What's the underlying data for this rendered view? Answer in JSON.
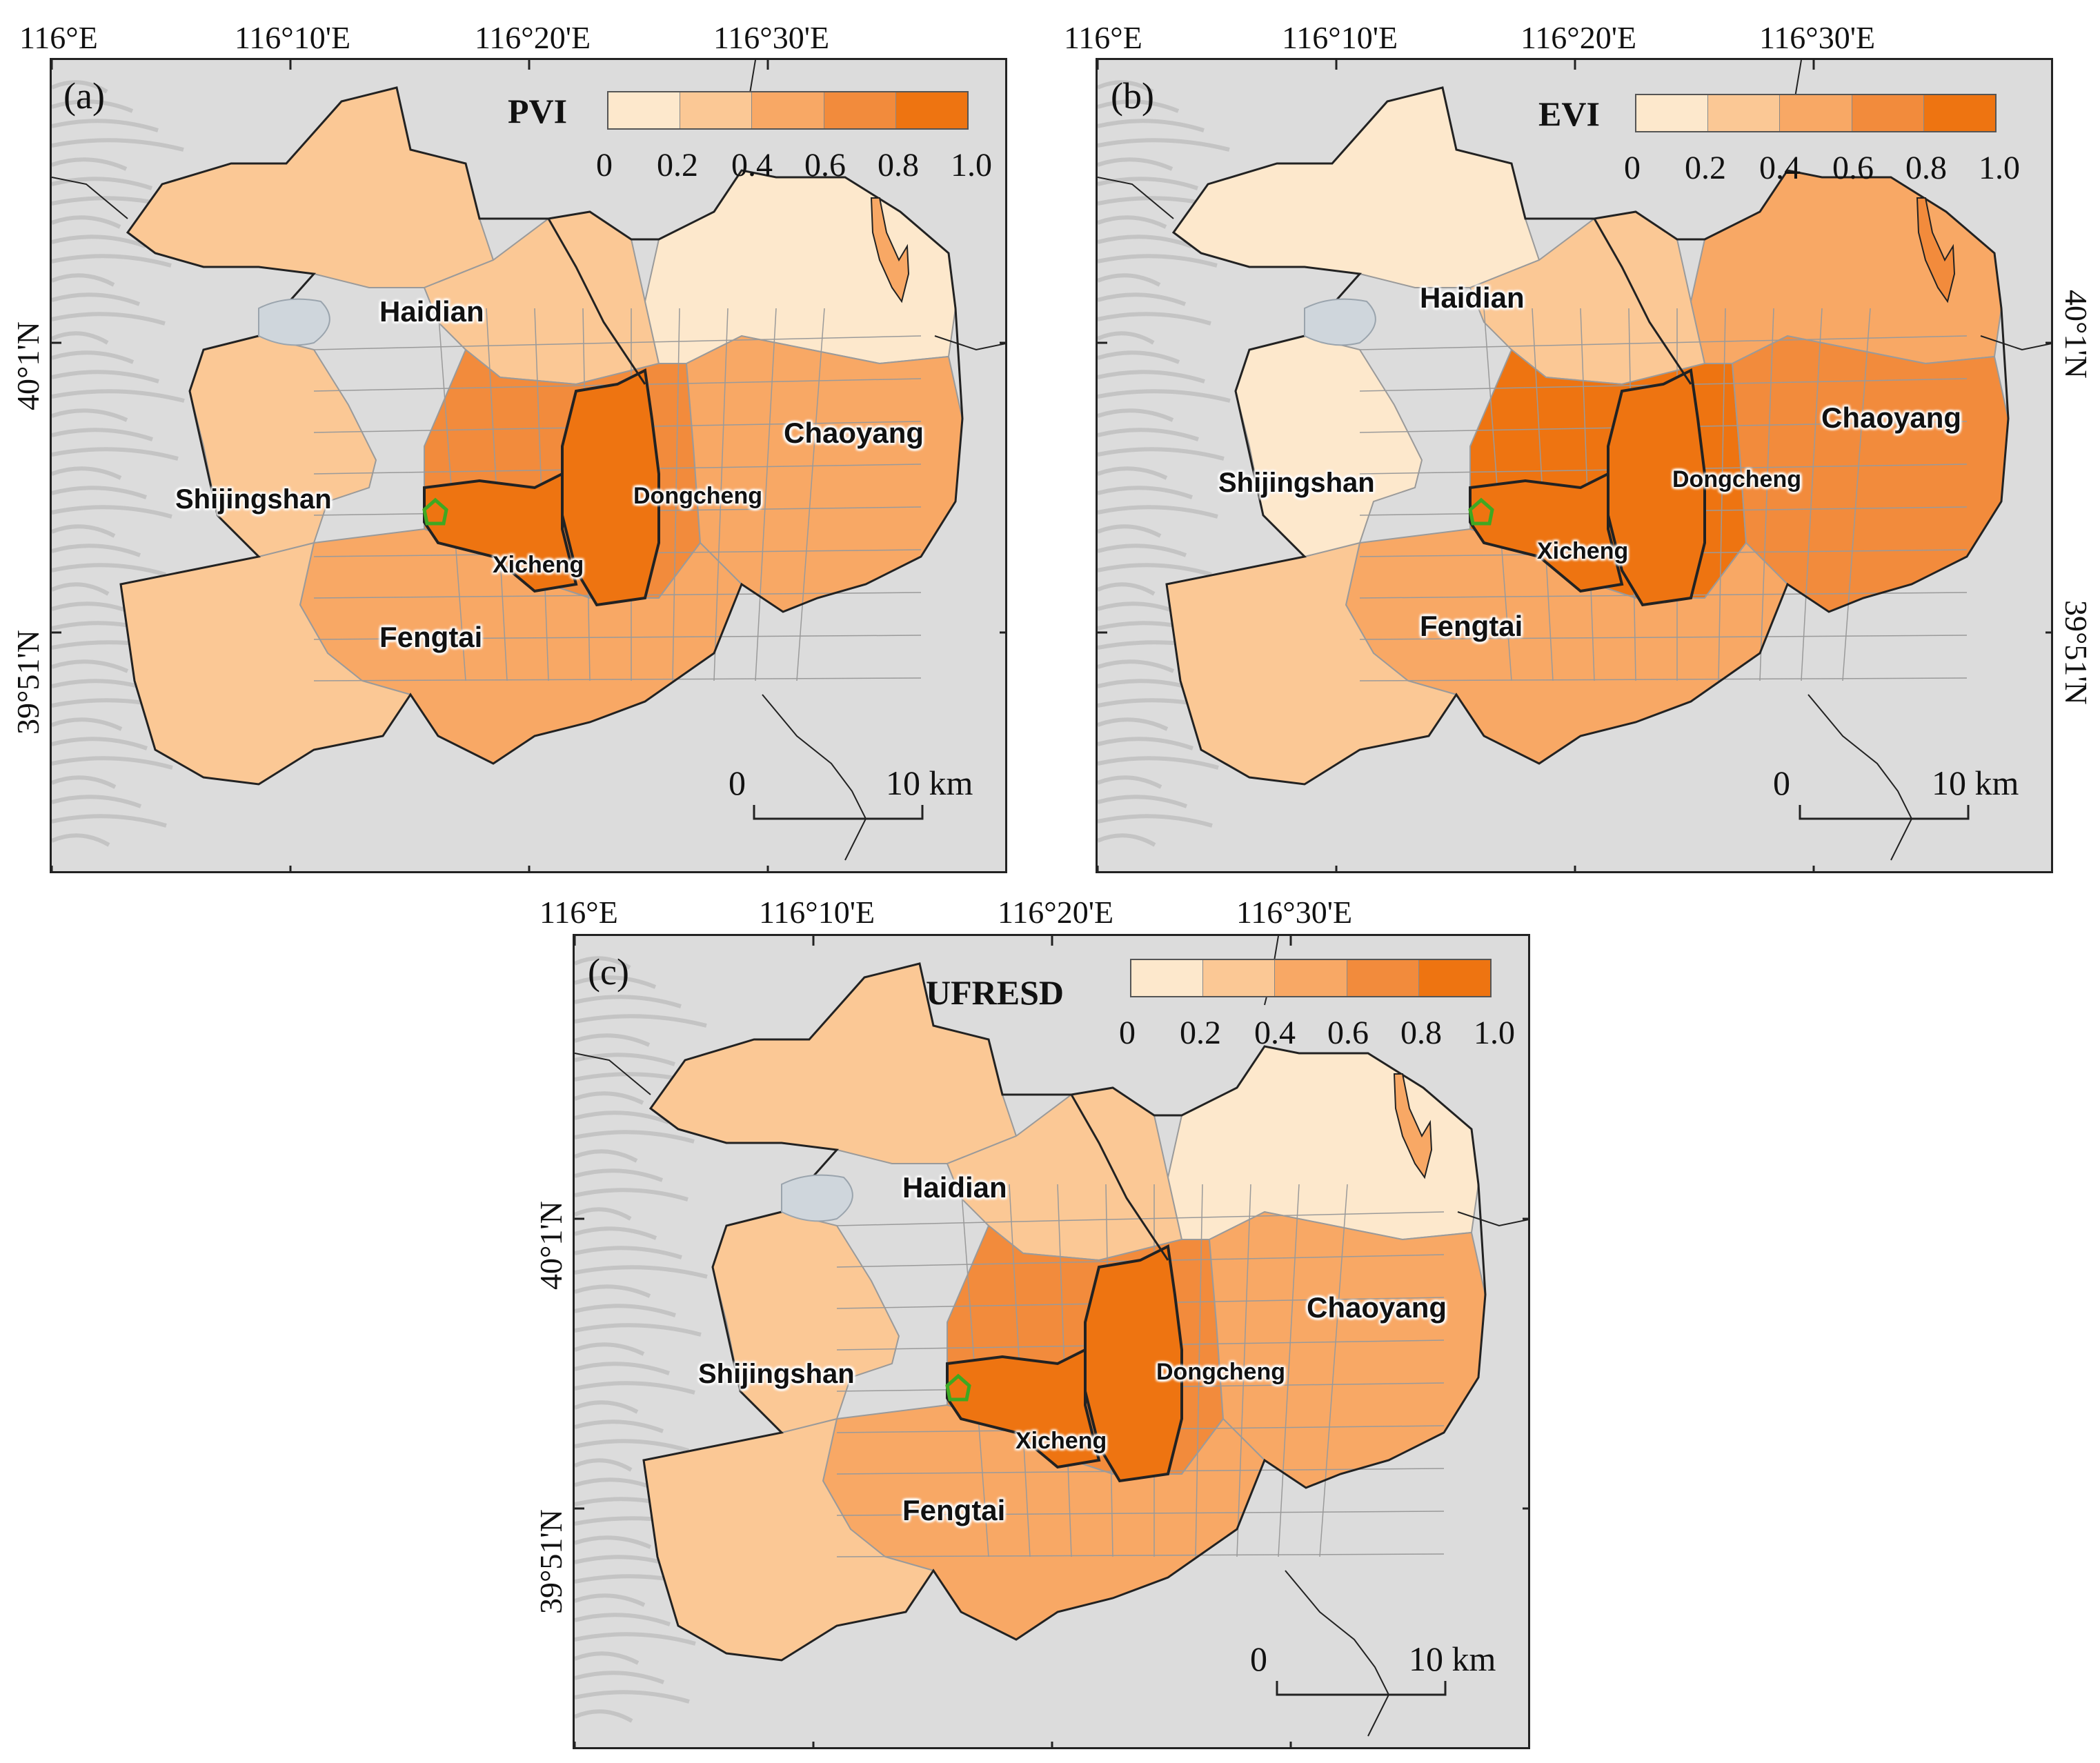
{
  "panels": [
    {
      "id": "a",
      "label": "(a)",
      "index_name": "PVI",
      "lon_ticks": [
        "116°E",
        "116°10'E",
        "116°20'E",
        "116°30'E"
      ],
      "lat_ticks": [
        "40°1'N",
        "39°51'N"
      ],
      "legend_ticks": [
        "0",
        "0.2",
        "0.4",
        "0.6",
        "0.8",
        "1.0"
      ],
      "scale_labels": [
        "0",
        "10 km"
      ],
      "districts": [
        "Haidian",
        "Chaoyang",
        "Shijingshan",
        "Dongcheng",
        "Xicheng",
        "Fengtai"
      ],
      "district_levels": {
        "west": 0.3,
        "north": 0.35,
        "northeast": 0.15,
        "center": 0.7,
        "east": 0.5,
        "south": 0.45,
        "southwest": 0.3
      }
    },
    {
      "id": "b",
      "label": "(b)",
      "index_name": "EVI",
      "lon_ticks": [
        "116°E",
        "116°10'E",
        "116°20'E",
        "116°30'E"
      ],
      "lat_ticks": [
        "40°1'N",
        "39°51'N"
      ],
      "legend_ticks": [
        "0",
        "0.2",
        "0.4",
        "0.6",
        "0.8",
        "1.0"
      ],
      "scale_labels": [
        "0",
        "10 km"
      ],
      "districts": [
        "Haidian",
        "Chaoyang",
        "Shijingshan",
        "Dongcheng",
        "Xicheng",
        "Fengtai"
      ],
      "district_levels": {
        "west": 0.15,
        "north": 0.3,
        "northeast": 0.45,
        "center": 0.85,
        "east": 0.75,
        "south": 0.6,
        "southwest": 0.3
      }
    },
    {
      "id": "c",
      "label": "(c)",
      "index_name": "UFRESD",
      "lon_ticks": [
        "116°E",
        "116°10'E",
        "116°20'E",
        "116°30'E"
      ],
      "lat_ticks": [
        "40°1'N",
        "39°51'N"
      ],
      "legend_ticks": [
        "0",
        "0.2",
        "0.4",
        "0.6",
        "0.8",
        "1.0"
      ],
      "scale_labels": [
        "0",
        "10 km"
      ],
      "districts": [
        "Haidian",
        "Chaoyang",
        "Shijingshan",
        "Dongcheng",
        "Xicheng",
        "Fengtai"
      ],
      "district_levels": {
        "west": 0.3,
        "north": 0.35,
        "northeast": 0.15,
        "center": 0.7,
        "east": 0.5,
        "south": 0.45,
        "southwest": 0.3
      }
    }
  ],
  "legend_classes": [
    {
      "range": "0-0.2",
      "color": "#fde8cc"
    },
    {
      "range": "0.2-0.4",
      "color": "#fbc895"
    },
    {
      "range": "0.4-0.6",
      "color": "#f8a865"
    },
    {
      "range": "0.6-0.8",
      "color": "#f28b3c"
    },
    {
      "range": "0.8-1.0",
      "color": "#ee7411"
    }
  ],
  "colors": {
    "background": "#dcdcdc",
    "boundary_thin": "#9a9a9a",
    "boundary_thick": "#222222",
    "green_marker": "#3fa822"
  }
}
